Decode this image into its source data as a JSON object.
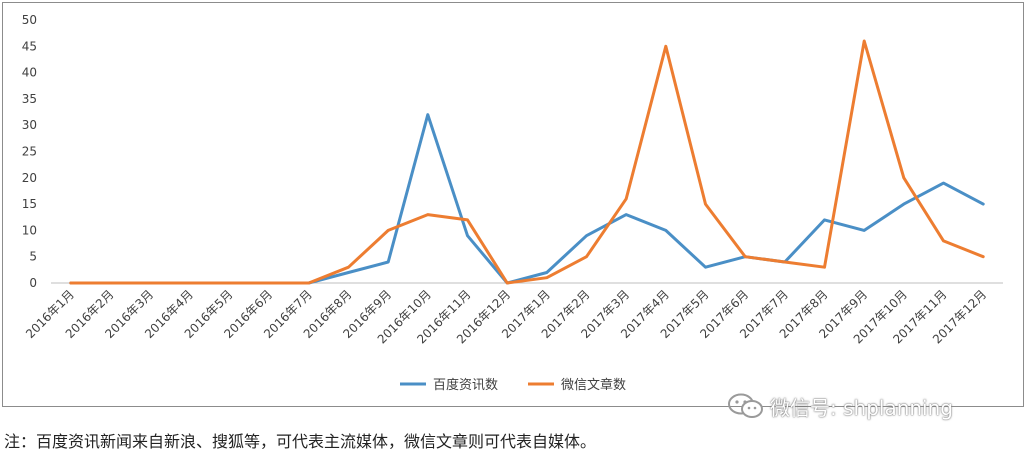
{
  "chart_data": {
    "type": "line",
    "categories": [
      "2016年1月",
      "2016年2月",
      "2016年3月",
      "2016年4月",
      "2016年5月",
      "2016年6月",
      "2016年7月",
      "2016年8月",
      "2016年9月",
      "2016年10月",
      "2016年11月",
      "2016年12月",
      "2017年1月",
      "2017年2月",
      "2017年3月",
      "2017年4月",
      "2017年5月",
      "2017年6月",
      "2017年7月",
      "2017年8月",
      "2017年9月",
      "2017年10月",
      "2017年11月",
      "2017年12月"
    ],
    "series": [
      {
        "name": "百度资讯数",
        "color": "#4a8fc6",
        "values": [
          0,
          0,
          0,
          0,
          0,
          0,
          0,
          2,
          4,
          32,
          9,
          0,
          2,
          9,
          13,
          10,
          3,
          5,
          4,
          12,
          10,
          15,
          19,
          15
        ]
      },
      {
        "name": "微信文章数",
        "color": "#ed7d31",
        "values": [
          0,
          0,
          0,
          0,
          0,
          0,
          0,
          3,
          10,
          13,
          12,
          0,
          1,
          5,
          16,
          45,
          15,
          5,
          4,
          3,
          46,
          20,
          8,
          5
        ]
      }
    ],
    "ylim": [
      0,
      50
    ],
    "yticks": [
      0,
      5,
      10,
      15,
      20,
      25,
      30,
      35,
      40,
      45,
      50
    ],
    "grid": false,
    "legend_position": "bottom-center",
    "title": "",
    "xlabel": "",
    "ylabel": ""
  },
  "watermark": {
    "text": "微信号: shplanning",
    "icon": "wechat-icon"
  },
  "caption": "注：百度资讯新闻来自新浪、搜狐等，可代表主流媒体，微信文章则可代表自媒体。"
}
